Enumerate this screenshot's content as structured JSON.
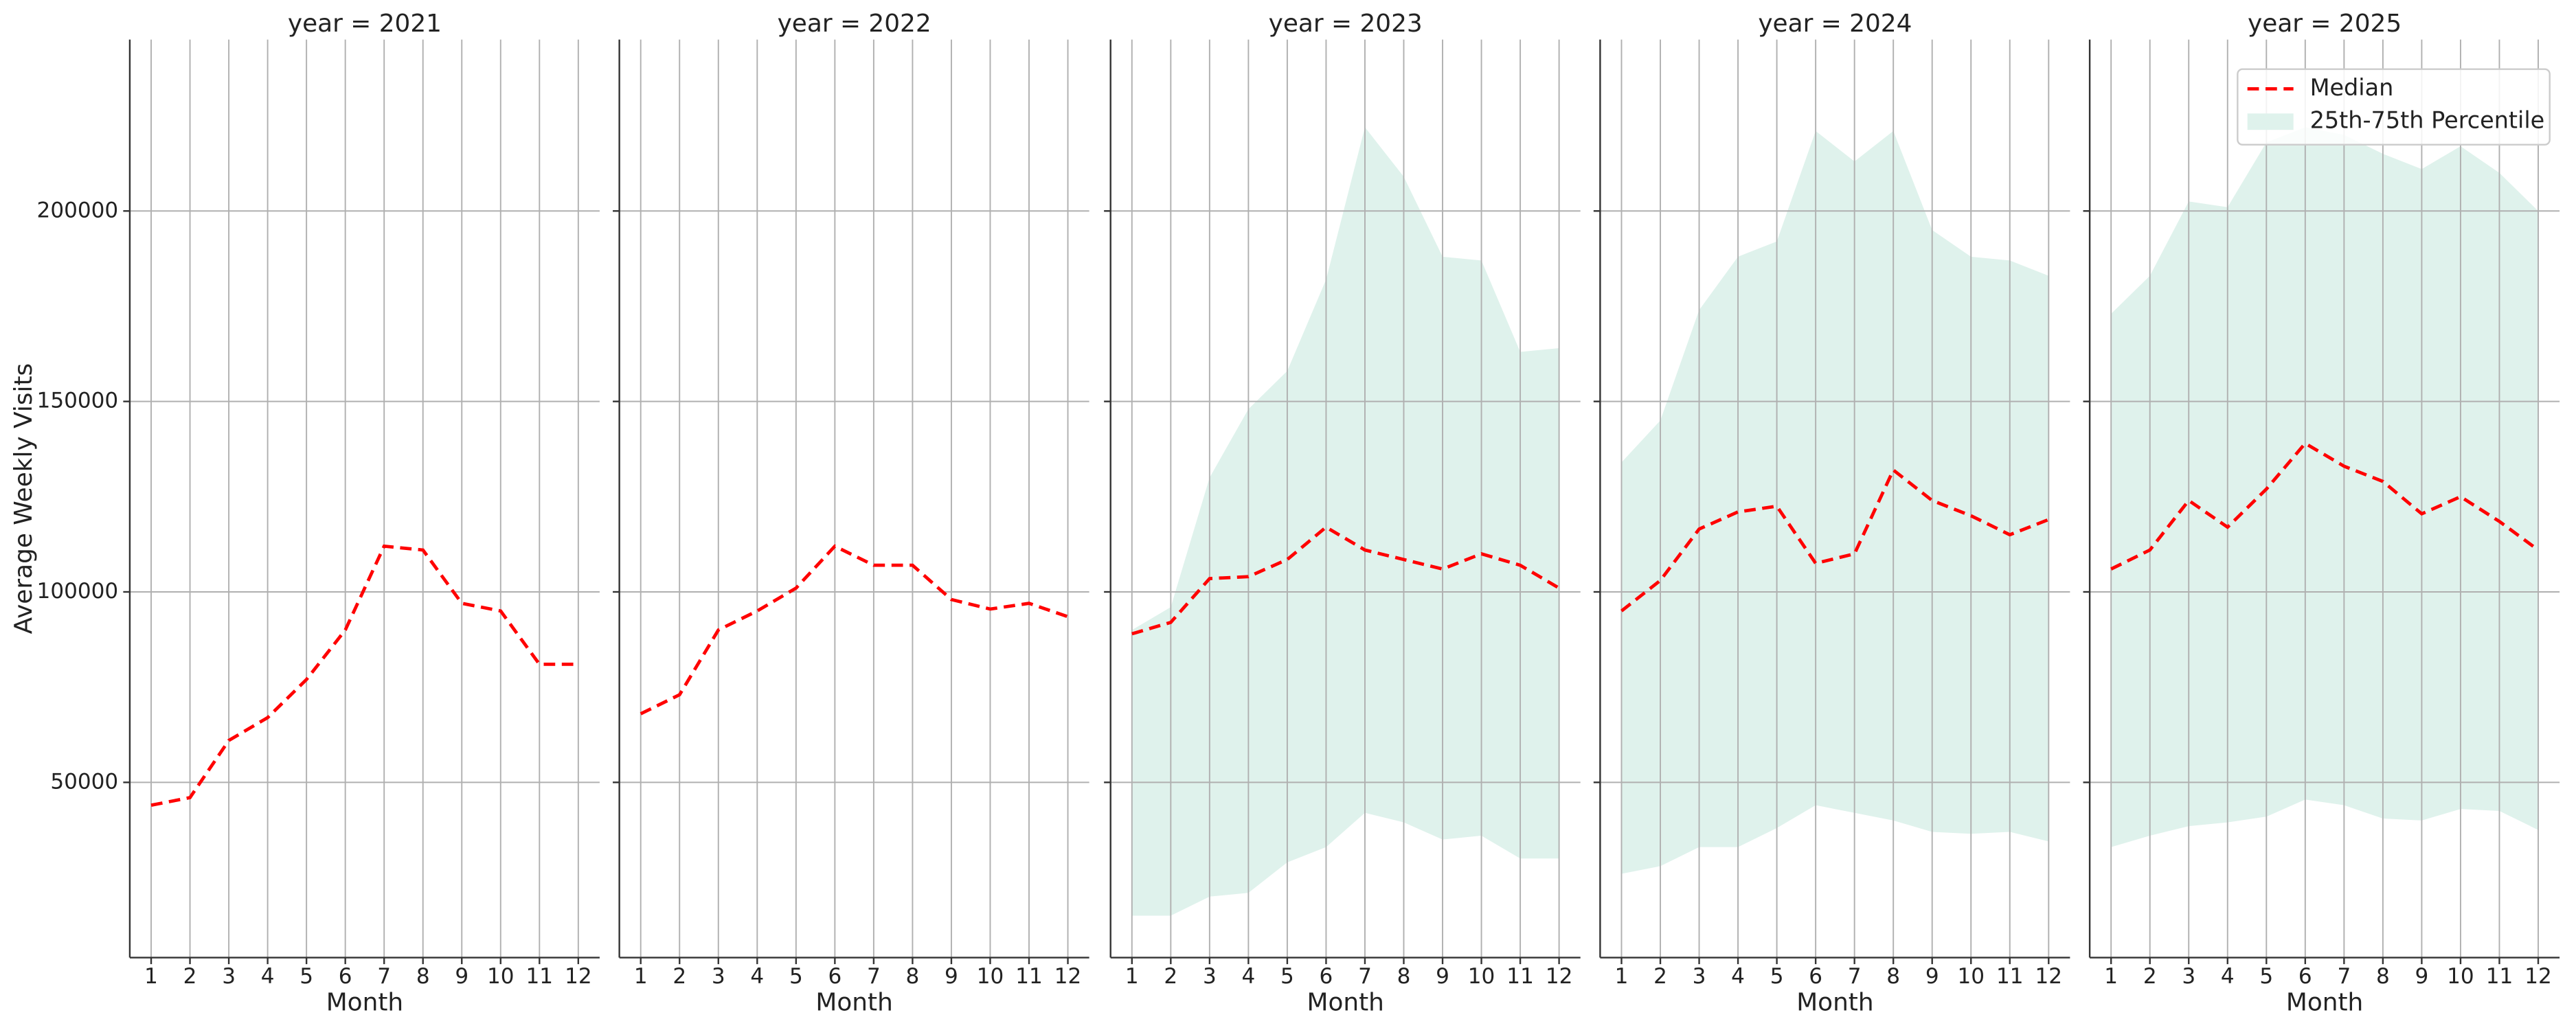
{
  "chart_data": [
    {
      "type": "line",
      "title": "year = 2021",
      "xlabel": "Month",
      "ylabel": "Average Weekly Visits",
      "x": [
        1,
        2,
        3,
        4,
        5,
        6,
        7,
        8,
        9,
        10,
        11,
        12
      ],
      "xlim": [
        0.45,
        12.55
      ],
      "xticks": [
        1,
        2,
        3,
        4,
        5,
        6,
        7,
        8,
        9,
        10,
        11,
        12
      ],
      "ylim": [
        4000,
        245000
      ],
      "yticks": [
        50000,
        100000,
        150000,
        200000
      ],
      "grid": true,
      "series": [
        {
          "color": "#ff0000",
          "style": "dashed",
          "values": [
            44000,
            46000,
            61000,
            67000,
            77000,
            90000,
            112000,
            111000,
            97000,
            95000,
            81000,
            81000
          ]
        }
      ]
    },
    {
      "type": "line",
      "title": "year = 2022",
      "xlabel": "Month",
      "x": [
        1,
        2,
        3,
        4,
        5,
        6,
        7,
        8,
        9,
        10,
        11,
        12
      ],
      "xlim": [
        0.45,
        12.55
      ],
      "xticks": [
        1,
        2,
        3,
        4,
        5,
        6,
        7,
        8,
        9,
        10,
        11,
        12
      ],
      "ylim": [
        4000,
        245000
      ],
      "yticks": [
        50000,
        100000,
        150000,
        200000
      ],
      "grid": true,
      "series": [
        {
          "color": "#ff0000",
          "style": "dashed",
          "values": [
            68000,
            73000,
            90000,
            95000,
            101000,
            112000,
            107000,
            107000,
            98000,
            95500,
            97000,
            93500
          ]
        }
      ]
    },
    {
      "type": "line",
      "title": "year = 2023",
      "xlabel": "Month",
      "x": [
        1,
        2,
        3,
        4,
        5,
        6,
        7,
        8,
        9,
        10,
        11,
        12
      ],
      "xlim": [
        0.45,
        12.55
      ],
      "xticks": [
        1,
        2,
        3,
        4,
        5,
        6,
        7,
        8,
        9,
        10,
        11,
        12
      ],
      "ylim": [
        4000,
        245000
      ],
      "yticks": [
        50000,
        100000,
        150000,
        200000
      ],
      "grid": true,
      "band": {
        "color": "#dff2ec",
        "lower": [
          15000,
          15000,
          20000,
          21000,
          29000,
          33000,
          42000,
          39500,
          35000,
          36000,
          30000,
          30000
        ],
        "upper": [
          90000,
          96000,
          130000,
          148000,
          158000,
          182000,
          222000,
          209000,
          188000,
          187000,
          163000,
          164000
        ]
      },
      "series": [
        {
          "color": "#ff0000",
          "style": "dashed",
          "values": [
            89000,
            92000,
            103500,
            104000,
            108500,
            117000,
            111000,
            108500,
            106000,
            110000,
            107000,
            101000
          ]
        }
      ]
    },
    {
      "type": "line",
      "title": "year = 2024",
      "xlabel": "Month",
      "x": [
        1,
        2,
        3,
        4,
        5,
        6,
        7,
        8,
        9,
        10,
        11,
        12
      ],
      "xlim": [
        0.45,
        12.55
      ],
      "xticks": [
        1,
        2,
        3,
        4,
        5,
        6,
        7,
        8,
        9,
        10,
        11,
        12
      ],
      "ylim": [
        4000,
        245000
      ],
      "yticks": [
        50000,
        100000,
        150000,
        200000
      ],
      "grid": true,
      "band": {
        "color": "#dff2ec",
        "lower": [
          26000,
          28000,
          33000,
          33000,
          38000,
          44000,
          42000,
          40000,
          37000,
          36500,
          37000,
          34500
        ],
        "upper": [
          134000,
          145000,
          174000,
          188000,
          192000,
          221000,
          213000,
          221000,
          195000,
          188000,
          187000,
          183000
        ]
      },
      "series": [
        {
          "color": "#ff0000",
          "style": "dashed",
          "values": [
            95000,
            103000,
            116500,
            121000,
            122500,
            107500,
            110000,
            132000,
            124000,
            120000,
            115000,
            119000
          ]
        }
      ]
    },
    {
      "type": "line",
      "title": "year = 2025",
      "xlabel": "Month",
      "x": [
        1,
        2,
        3,
        4,
        5,
        6,
        7,
        8,
        9,
        10,
        11,
        12
      ],
      "xlim": [
        0.45,
        12.55
      ],
      "xticks": [
        1,
        2,
        3,
        4,
        5,
        6,
        7,
        8,
        9,
        10,
        11,
        12
      ],
      "ylim": [
        4000,
        245000
      ],
      "yticks": [
        50000,
        100000,
        150000,
        200000
      ],
      "grid": true,
      "legend": "upper right",
      "band": {
        "name": "25th-75th Percentile",
        "color": "#dff2ec",
        "lower": [
          33000,
          36000,
          38500,
          39500,
          41000,
          45500,
          44000,
          40500,
          40000,
          43000,
          42500,
          37500
        ],
        "upper": [
          173000,
          183000,
          202500,
          201000,
          218000,
          222000,
          220000,
          215000,
          211000,
          217000,
          210000,
          200000
        ]
      },
      "series": [
        {
          "name": "Median",
          "color": "#ff0000",
          "style": "dashed",
          "values": [
            106000,
            111000,
            124000,
            117000,
            127000,
            139000,
            133000,
            129000,
            120500,
            125000,
            118500,
            111000
          ]
        }
      ]
    }
  ]
}
